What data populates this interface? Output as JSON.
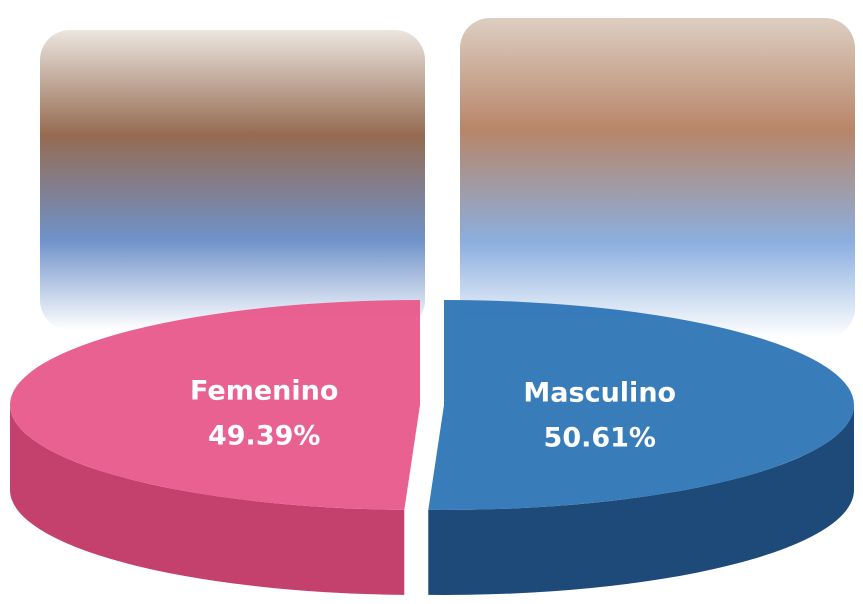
{
  "chart_data": {
    "type": "pie",
    "categories": [
      "Femenino",
      "Masculino"
    ],
    "values": [
      49.39,
      50.61
    ],
    "value_labels": [
      "49.39%",
      "50.61%"
    ],
    "colors": [
      "#e8588a",
      "#2e75b6"
    ],
    "side_colors": [
      "#c4416d",
      "#1d4a78"
    ]
  }
}
